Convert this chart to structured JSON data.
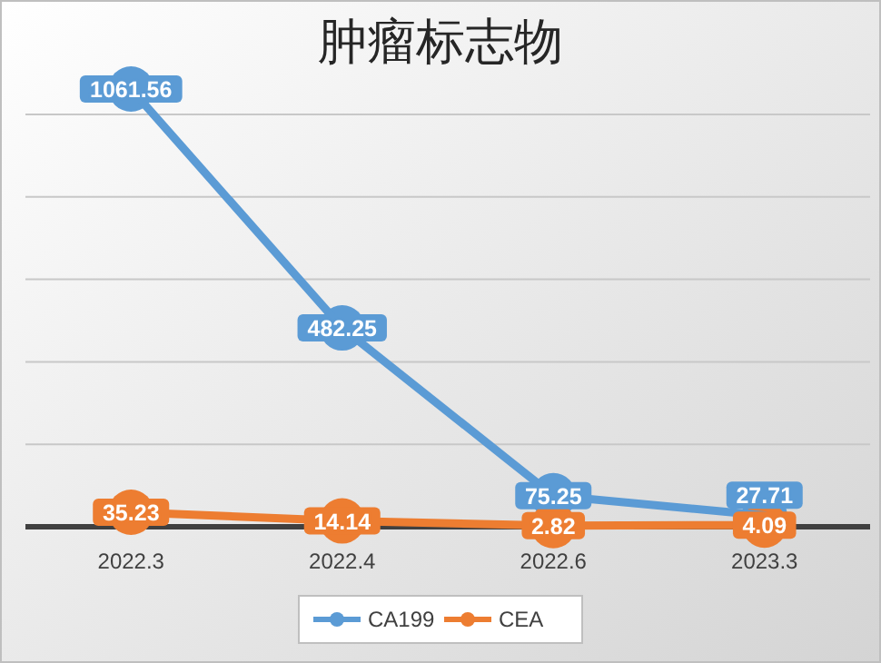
{
  "chart_data": {
    "type": "line",
    "title": "肿瘤标志物",
    "categories": [
      "2022.3",
      "2022.4",
      "2022.6",
      "2023.3"
    ],
    "series": [
      {
        "name": "CA199",
        "color": "#5b9bd5",
        "values": [
          1061.56,
          482.25,
          75.25,
          27.71
        ]
      },
      {
        "name": "CEA",
        "color": "#ed7d31",
        "values": [
          35.23,
          14.14,
          2.82,
          4.09
        ]
      }
    ],
    "yticks": [
      {
        "value": 0,
        "label": null
      },
      {
        "value": 200,
        "label": null
      },
      {
        "value": 400,
        "label": null
      },
      {
        "value": 600,
        "label": null
      },
      {
        "value": 800,
        "label": null
      },
      {
        "value": 1000,
        "label": null
      }
    ],
    "grid": "y",
    "legend": "bottom",
    "marker": "circle",
    "line_style": "solid",
    "data_labels": true
  }
}
